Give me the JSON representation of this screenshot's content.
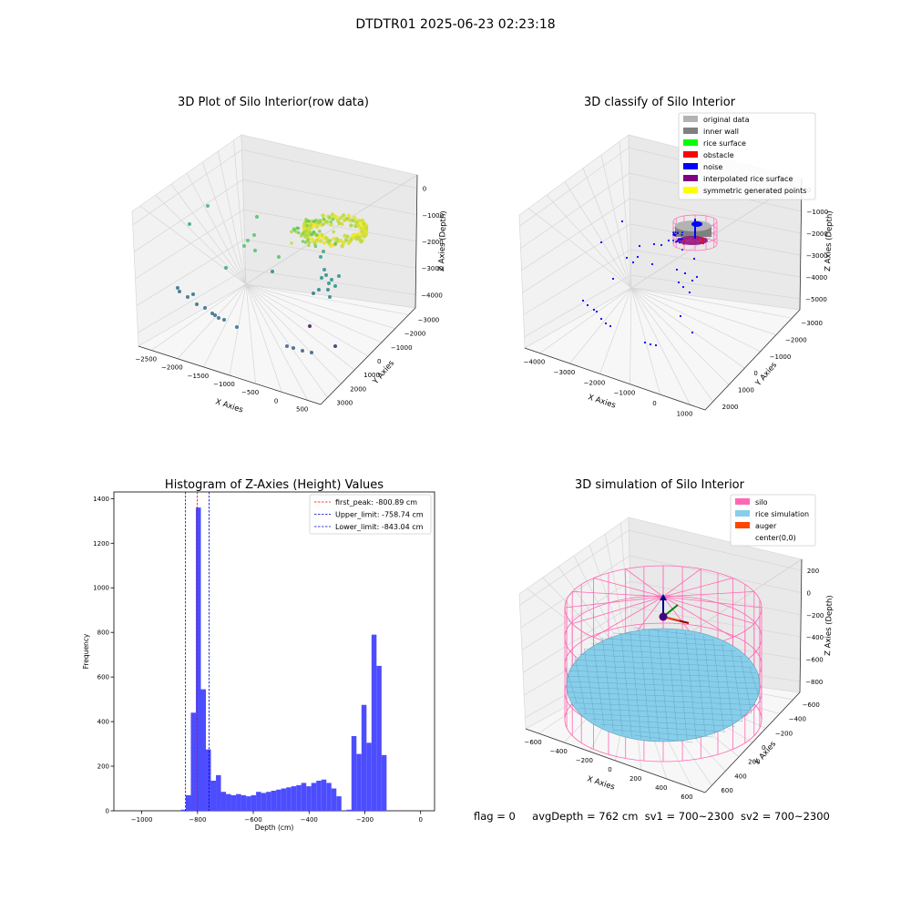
{
  "figure": {
    "suptitle": "DTDTR01 2025-06-23 02:23:18",
    "info": {
      "flag": "flag = 0",
      "avg_depth": "avgDepth = 762 cm",
      "sv1": "sv1 = 700~2300",
      "sv2": "sv2 = 700~2300"
    }
  },
  "chart_data": [
    {
      "type": "scatter",
      "projection": "3d",
      "title": "3D Plot of Silo Interior(row data)",
      "xlabel": "X Axies",
      "ylabel": "Y Axies",
      "zlabel": "Z Axies (Depth)",
      "x_ticks": [
        "−2500",
        "−2000",
        "−1500",
        "−1000",
        "−500",
        "0",
        "500"
      ],
      "y_ticks": [
        "−3000",
        "−2000",
        "−1000",
        "0",
        "1000",
        "2000",
        "3000"
      ],
      "z_ticks": [
        "−4000",
        "−3000",
        "−2000",
        "−1000",
        "0"
      ],
      "xlim": [
        -2700,
        600
      ],
      "ylim": [
        -3300,
        3300
      ],
      "zlim": [
        -4500,
        0
      ],
      "colormap": "viridis",
      "grid": true
    },
    {
      "type": "scatter",
      "projection": "3d",
      "title": "3D classify of Silo Interior",
      "x_ticks": [
        "−4000",
        "−3000",
        "−2000",
        "−1000",
        "0",
        "1000"
      ],
      "y_ticks": [
        "−3000",
        "−2000",
        "−1000",
        "0",
        "1000",
        "2000"
      ],
      "z_ticks": [
        "−5000",
        "−4000",
        "−3000",
        "−2000",
        "−1000",
        "0"
      ],
      "xlabel": "X Axies",
      "ylabel": "Y Axies",
      "zlabel": "Z Axies (Depth)",
      "xlim": [
        -4000,
        1500
      ],
      "ylim": [
        -3000,
        2500
      ],
      "zlim": [
        -5000,
        0
      ],
      "legend_position": "top-right",
      "legend": [
        {
          "label": "original data",
          "color": "#b3b3b3"
        },
        {
          "label": "inner wall",
          "color": "#808080"
        },
        {
          "label": "rice surface",
          "color": "#00ff00"
        },
        {
          "label": "obstacle",
          "color": "#ff0000"
        },
        {
          "label": "noise",
          "color": "#0000ff"
        },
        {
          "label": "interpolated rice surface",
          "color": "#800080"
        },
        {
          "label": "symmetric generated points",
          "color": "#ffff00"
        }
      ],
      "grid": true
    },
    {
      "type": "bar",
      "title": "Histogram of Z-Axies (Height) Values",
      "xlabel": "Depth (cm)",
      "ylabel": "Frequency",
      "xlim": [
        -1100,
        50
      ],
      "ylim": [
        0,
        1430
      ],
      "x_ticks": [
        -1000,
        -800,
        -600,
        -400,
        -200,
        0
      ],
      "y_ticks": [
        0,
        200,
        400,
        600,
        800,
        1000,
        1200,
        1400
      ],
      "bar_color": "#4d4dff",
      "bin_width": 18,
      "bins_start": [
        -860,
        -842,
        -824,
        -806,
        -788,
        -770,
        -752,
        -734,
        -716,
        -698,
        -680,
        -662,
        -644,
        -626,
        -608,
        -590,
        -572,
        -554,
        -536,
        -518,
        -500,
        -482,
        -464,
        -446,
        -428,
        -410,
        -392,
        -374,
        -356,
        -338,
        -320,
        -302,
        -284,
        -266,
        -248,
        -230,
        -212,
        -194,
        -176,
        -158,
        -140,
        -122,
        -104,
        -86,
        -68,
        -50,
        -32,
        -14
      ],
      "values": [
        5,
        70,
        440,
        1360,
        545,
        275,
        135,
        160,
        85,
        75,
        70,
        75,
        70,
        65,
        70,
        85,
        80,
        85,
        90,
        95,
        100,
        105,
        110,
        115,
        125,
        110,
        125,
        135,
        140,
        125,
        100,
        65,
        0,
        5,
        335,
        255,
        475,
        305,
        790,
        650,
        250,
        0,
        0,
        0,
        0,
        0,
        0,
        0
      ],
      "legend_position": "top-right",
      "vlines": [
        {
          "label": "first_peak: -800.89 cm",
          "x": -800.89,
          "color": "#ff0000"
        },
        {
          "label": "Upper_limit: -758.74 cm",
          "x": -758.74,
          "color": "#0000cc"
        },
        {
          "label": "Lower_limit: -843.04 cm",
          "x": -843.04,
          "color": "#0000cc"
        }
      ]
    },
    {
      "type": "scatter",
      "projection": "3d",
      "title": "3D simulation of Silo Interior",
      "xlabel": "X Axies",
      "ylabel": "Y Axies",
      "zlabel": "Z Axies (Depth)",
      "x_ticks": [
        "−600",
        "−400",
        "−200",
        "0",
        "200",
        "400",
        "600"
      ],
      "y_ticks": [
        "−600",
        "−400",
        "−200",
        "0",
        "200",
        "400",
        "600"
      ],
      "z_ticks": [
        "−800",
        "−600",
        "−400",
        "−200",
        "0",
        "200"
      ],
      "xlim": [
        -700,
        700
      ],
      "ylim": [
        -700,
        700
      ],
      "zlim": [
        -950,
        300
      ],
      "legend_position": "top-right",
      "legend": [
        {
          "label": "silo",
          "color": "#ff69b4"
        },
        {
          "label": "rice simulation",
          "color": "#87ceeb"
        },
        {
          "label": "auger",
          "color": "#ff4500"
        },
        {
          "label": "center(0,0)",
          "color": "#ffffff"
        }
      ],
      "grid": true
    }
  ]
}
